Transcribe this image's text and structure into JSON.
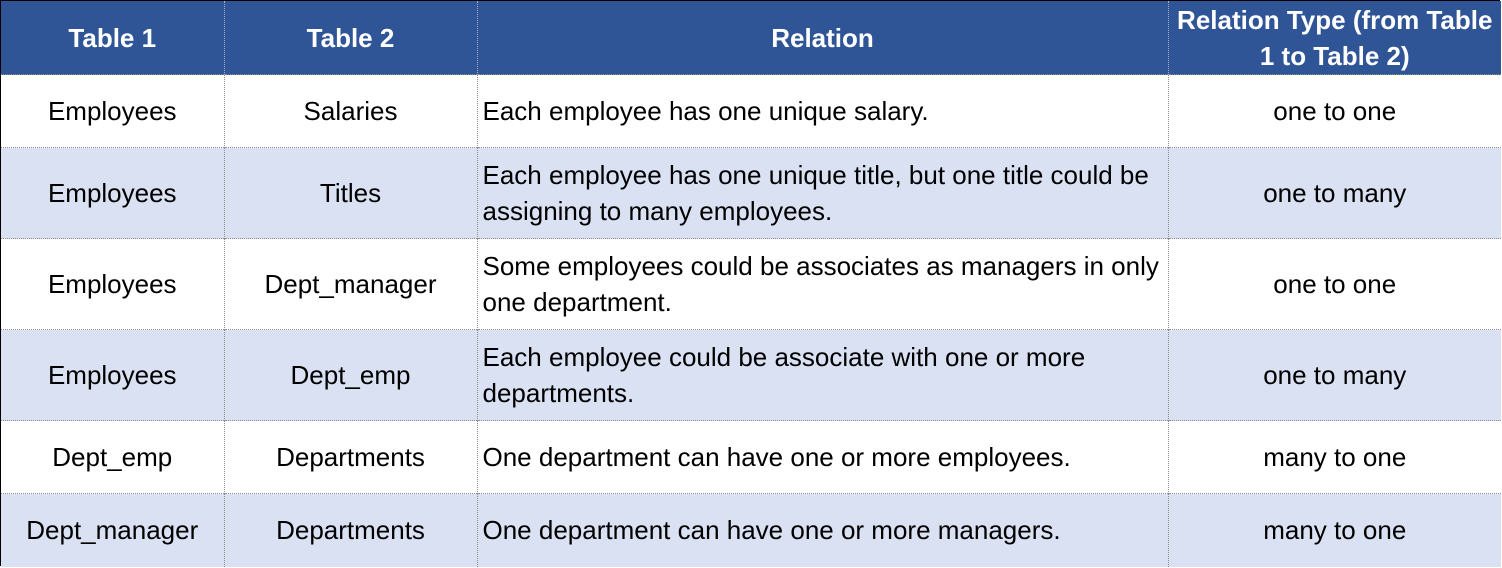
{
  "header": {
    "col1": "Table 1",
    "col2": "Table 2",
    "col3": "Relation",
    "col4": "Relation Type (from Table 1 to Table 2)"
  },
  "rows": [
    {
      "table1": "Employees",
      "table2": "Salaries",
      "relation": "Each employee has one unique salary.",
      "type": "one to one"
    },
    {
      "table1": "Employees",
      "table2": "Titles",
      "relation": "Each employee has one unique title, but one title could be assigning to many employees.",
      "type": "one to many"
    },
    {
      "table1": "Employees",
      "table2": "Dept_manager",
      "relation": "Some employees could be associates as managers in only one department.",
      "type": "one to one"
    },
    {
      "table1": "Employees",
      "table2": "Dept_emp",
      "relation": "Each employee could be associate with one or more departments.",
      "type": "one to many"
    },
    {
      "table1": "Dept_emp",
      "table2": "Departments",
      "relation": "One department can have one or more employees.",
      "type": "many to one"
    },
    {
      "table1": "Dept_manager",
      "table2": "Departments",
      "relation": "One department can have one or more managers.",
      "type": "many to one"
    }
  ],
  "colors": {
    "header_bg": "#2f5597",
    "header_text": "#ffffff",
    "band_bg": "#d9e1f2"
  }
}
